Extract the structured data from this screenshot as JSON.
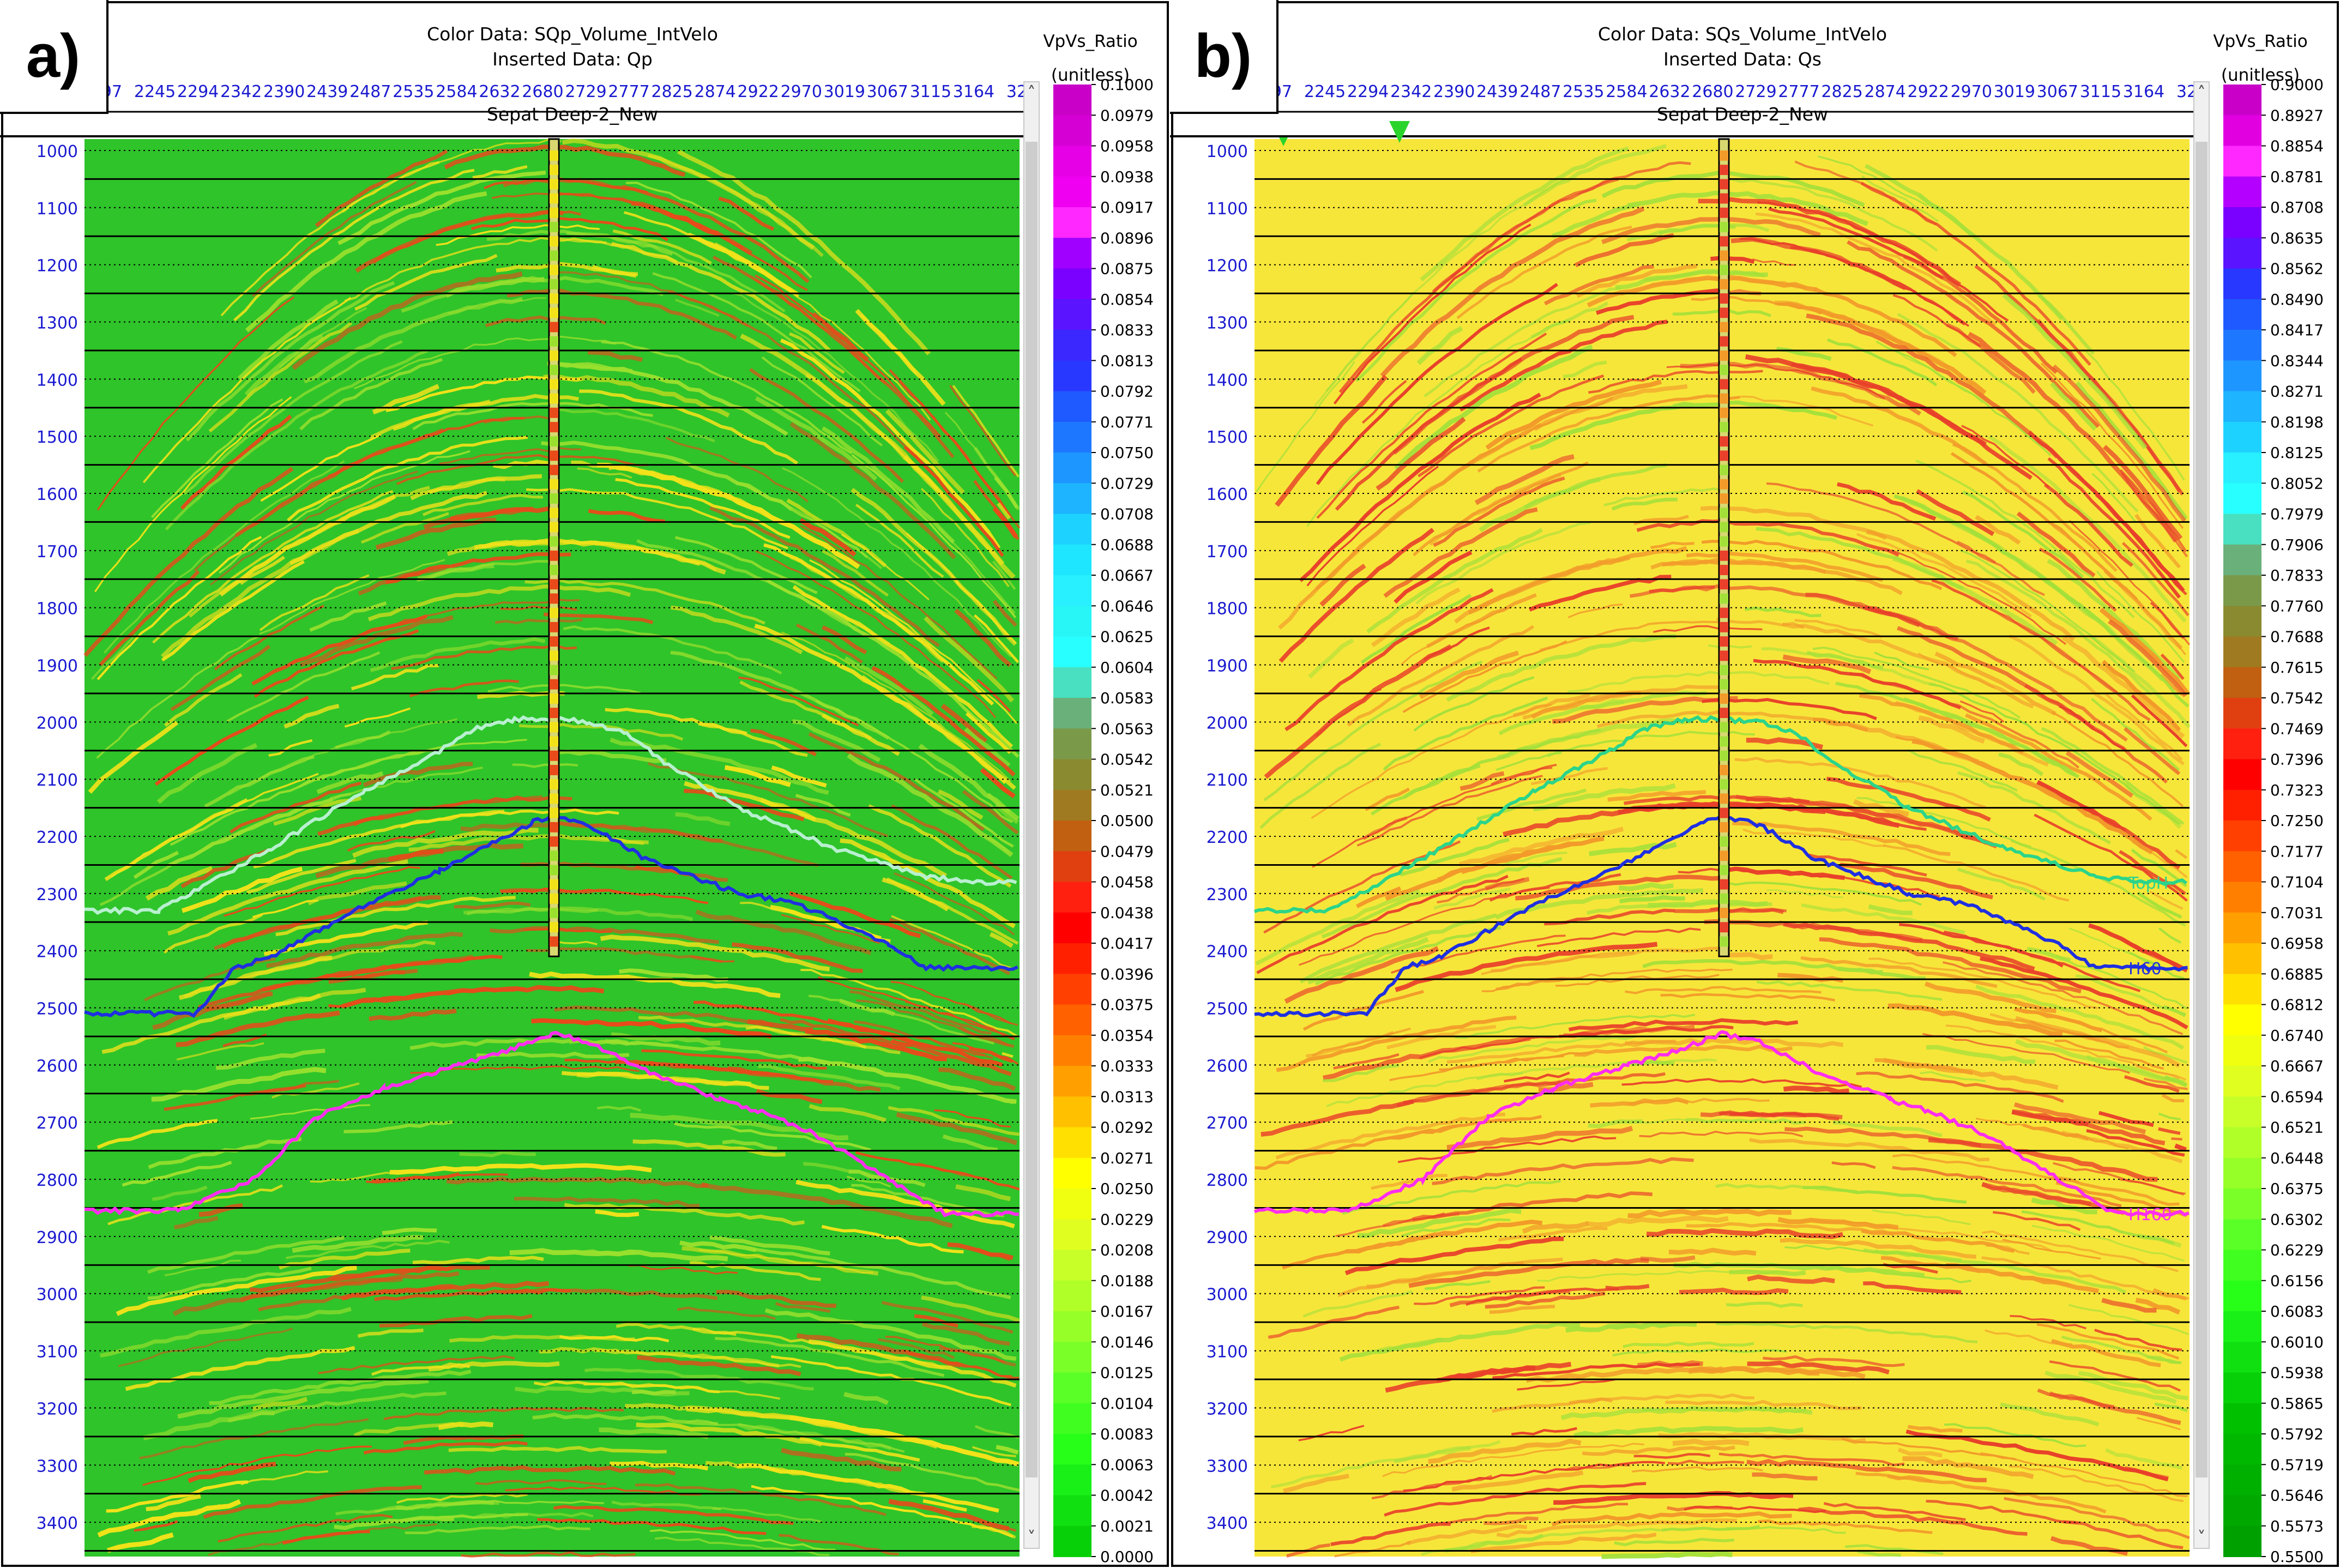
{
  "chart_data": [
    {
      "type": "heatmap",
      "panel_label": "a)",
      "color_data": "Color Data: SQp_Volume_IntVelo",
      "inserted_data": "Inserted Data: Qp",
      "well_name": "Sepat Deep-2_New",
      "colorbar_title": "VpVs_Ratio",
      "colorbar_unit": "(unitless)",
      "colorbar_ticks": [
        "0.1000",
        "0.0979",
        "0.0958",
        "0.0938",
        "0.0917",
        "0.0896",
        "0.0875",
        "0.0854",
        "0.0833",
        "0.0813",
        "0.0792",
        "0.0771",
        "0.0750",
        "0.0729",
        "0.0708",
        "0.0688",
        "0.0667",
        "0.0646",
        "0.0625",
        "0.0604",
        "0.0583",
        "0.0563",
        "0.0542",
        "0.0521",
        "0.0500",
        "0.0479",
        "0.0458",
        "0.0438",
        "0.0417",
        "0.0396",
        "0.0375",
        "0.0354",
        "0.0333",
        "0.0313",
        "0.0292",
        "0.0271",
        "0.0250",
        "0.0229",
        "0.0208",
        "0.0188",
        "0.0167",
        "0.0146",
        "0.0125",
        "0.0104",
        "0.0083",
        "0.0063",
        "0.0042",
        "0.0021",
        "0.0000"
      ],
      "x_ticks": [
        "97",
        "2245",
        "2294",
        "2342",
        "2390",
        "2439",
        "2487",
        "2535",
        "2584",
        "2632",
        "2680",
        "2729",
        "2777",
        "2825",
        "2874",
        "2922",
        "2970",
        "3019",
        "3067",
        "3115",
        "3164",
        "32"
      ],
      "y_ticks": [
        "1000",
        "1100",
        "1200",
        "1300",
        "1400",
        "1500",
        "1600",
        "1700",
        "1800",
        "1900",
        "2000",
        "2100",
        "2200",
        "2300",
        "2400",
        "2500",
        "2600",
        "2700",
        "2800",
        "2900",
        "3000",
        "3100",
        "3200",
        "3300",
        "3400"
      ],
      "ylim": [
        980,
        3460
      ],
      "horizons": [],
      "background_color": "#2fc42a",
      "stripe_colors": [
        "#f2e21a",
        "#9be02e",
        "#e84a1a"
      ],
      "stripe_density": 0.55
    },
    {
      "type": "heatmap",
      "panel_label": "b)",
      "color_data": "Color Data: SQs_Volume_IntVelo",
      "inserted_data": "Inserted Data: Qs",
      "well_name": "Sepat Deep-2_New",
      "colorbar_title": "VpVs_Ratio",
      "colorbar_unit": "(unitless)",
      "colorbar_ticks": [
        "0.9000",
        "0.8927",
        "0.8854",
        "0.8781",
        "0.8708",
        "0.8635",
        "0.8562",
        "0.8490",
        "0.8417",
        "0.8344",
        "0.8271",
        "0.8198",
        "0.8125",
        "0.8052",
        "0.7979",
        "0.7906",
        "0.7833",
        "0.7760",
        "0.7688",
        "0.7615",
        "0.7542",
        "0.7469",
        "0.7396",
        "0.7323",
        "0.7250",
        "0.7177",
        "0.7104",
        "0.7031",
        "0.6958",
        "0.6885",
        "0.6812",
        "0.6740",
        "0.6667",
        "0.6594",
        "0.6521",
        "0.6448",
        "0.6375",
        "0.6302",
        "0.6229",
        "0.6156",
        "0.6083",
        "0.6010",
        "0.5938",
        "0.5865",
        "0.5792",
        "0.5719",
        "0.5646",
        "0.5573",
        "0.5500"
      ],
      "x_ticks": [
        "97",
        "2245",
        "2294",
        "2342",
        "2390",
        "2439",
        "2487",
        "2535",
        "2584",
        "2632",
        "2680",
        "2729",
        "2777",
        "2825",
        "2874",
        "2922",
        "2970",
        "3019",
        "3067",
        "3115",
        "3164",
        "32"
      ],
      "y_ticks": [
        "1000",
        "1100",
        "1200",
        "1300",
        "1400",
        "1500",
        "1600",
        "1700",
        "1800",
        "1900",
        "2000",
        "2100",
        "2200",
        "2300",
        "2400",
        "2500",
        "2600",
        "2700",
        "2800",
        "2900",
        "3000",
        "3100",
        "3200",
        "3300",
        "3400"
      ],
      "ylim": [
        980,
        3460
      ],
      "horizons": [
        {
          "name": "TopH",
          "color": "#2bd48a"
        },
        {
          "name": "H60",
          "color": "#1f2fe0"
        },
        {
          "name": "H160",
          "color": "#ff2df0"
        }
      ],
      "background_color": "#f7e63a",
      "stripe_colors": [
        "#e8402a",
        "#f29a2a",
        "#a3e03a"
      ],
      "stripe_density": 0.6
    }
  ],
  "horizon_depths": {
    "TopH": {
      "xf": [
        0,
        0.08,
        0.2,
        0.3,
        0.38,
        0.42,
        0.46,
        0.5,
        0.54,
        0.58,
        0.62,
        0.7,
        0.8,
        0.9,
        0.95,
        1
      ],
      "depth": [
        2330,
        2330,
        2220,
        2120,
        2050,
        2010,
        1995,
        1995,
        2000,
        2020,
        2070,
        2150,
        2220,
        2270,
        2280,
        2280
      ]
    },
    "H60": {
      "xf": [
        0,
        0.12,
        0.16,
        0.2,
        0.3,
        0.38,
        0.44,
        0.48,
        0.5,
        0.54,
        0.6,
        0.7,
        0.74,
        0.78,
        0.86,
        0.9,
        1
      ],
      "depth": [
        2510,
        2510,
        2430,
        2410,
        2320,
        2260,
        2210,
        2175,
        2165,
        2180,
        2240,
        2300,
        2310,
        2330,
        2390,
        2430,
        2430
      ]
    },
    "H160": {
      "xf": [
        0,
        0.1,
        0.18,
        0.25,
        0.32,
        0.4,
        0.46,
        0.5,
        0.54,
        0.6,
        0.68,
        0.72,
        0.78,
        0.86,
        0.92,
        1
      ],
      "depth": [
        2855,
        2855,
        2800,
        2690,
        2640,
        2600,
        2570,
        2545,
        2560,
        2610,
        2660,
        2680,
        2720,
        2800,
        2860,
        2860
      ]
    }
  },
  "panel_a_horizons": [
    {
      "name": "TopH",
      "color": "#b8f0d0"
    },
    {
      "name": "H60",
      "color": "#1f2fe0"
    },
    {
      "name": "H160",
      "color": "#ff2df0"
    }
  ]
}
